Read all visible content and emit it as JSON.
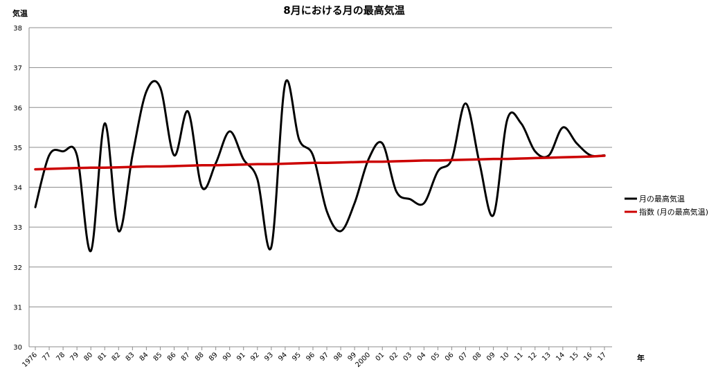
{
  "chart_data": {
    "type": "line",
    "title": "8月における月の最高気温",
    "ylabel": "気温",
    "xlabel": "年",
    "ylim": [
      30,
      38
    ],
    "yticks": [
      30,
      31,
      32,
      33,
      34,
      35,
      36,
      37,
      38
    ],
    "grid": "horizontal",
    "legend_position": "right",
    "categories": [
      "1976",
      "77",
      "78",
      "79",
      "80",
      "81",
      "82",
      "83",
      "84",
      "85",
      "86",
      "87",
      "88",
      "89",
      "90",
      "91",
      "92",
      "93",
      "94",
      "95",
      "96",
      "97",
      "98",
      "99",
      "2000",
      "01",
      "02",
      "03",
      "04",
      "05",
      "06",
      "07",
      "08",
      "09",
      "10",
      "11",
      "12",
      "13",
      "14",
      "15",
      "16",
      "17"
    ],
    "series": [
      {
        "name": "月の最高気温",
        "color": "#000000",
        "smooth": true,
        "values": [
          33.5,
          34.8,
          34.9,
          34.8,
          32.4,
          35.6,
          32.9,
          34.8,
          36.4,
          36.5,
          34.8,
          35.9,
          34.0,
          34.6,
          35.4,
          34.7,
          34.2,
          32.5,
          36.6,
          35.2,
          34.8,
          33.4,
          32.9,
          33.6,
          34.7,
          35.1,
          33.9,
          33.7,
          33.6,
          34.4,
          34.7,
          36.1,
          34.6,
          33.3,
          35.7,
          35.6,
          34.9,
          34.8,
          35.5,
          35.1,
          34.8,
          34.8
        ]
      },
      {
        "name": "指数 (月の最高気温)",
        "color": "#cc0000",
        "smooth": false,
        "values": [
          34.45,
          34.46,
          34.47,
          34.48,
          34.49,
          34.49,
          34.5,
          34.51,
          34.52,
          34.52,
          34.53,
          34.54,
          34.55,
          34.55,
          34.56,
          34.57,
          34.58,
          34.58,
          34.59,
          34.6,
          34.61,
          34.61,
          34.62,
          34.63,
          34.64,
          34.64,
          34.65,
          34.66,
          34.67,
          34.67,
          34.68,
          34.69,
          34.7,
          34.71,
          34.71,
          34.72,
          34.73,
          34.74,
          34.75,
          34.76,
          34.77,
          34.79
        ]
      }
    ]
  }
}
